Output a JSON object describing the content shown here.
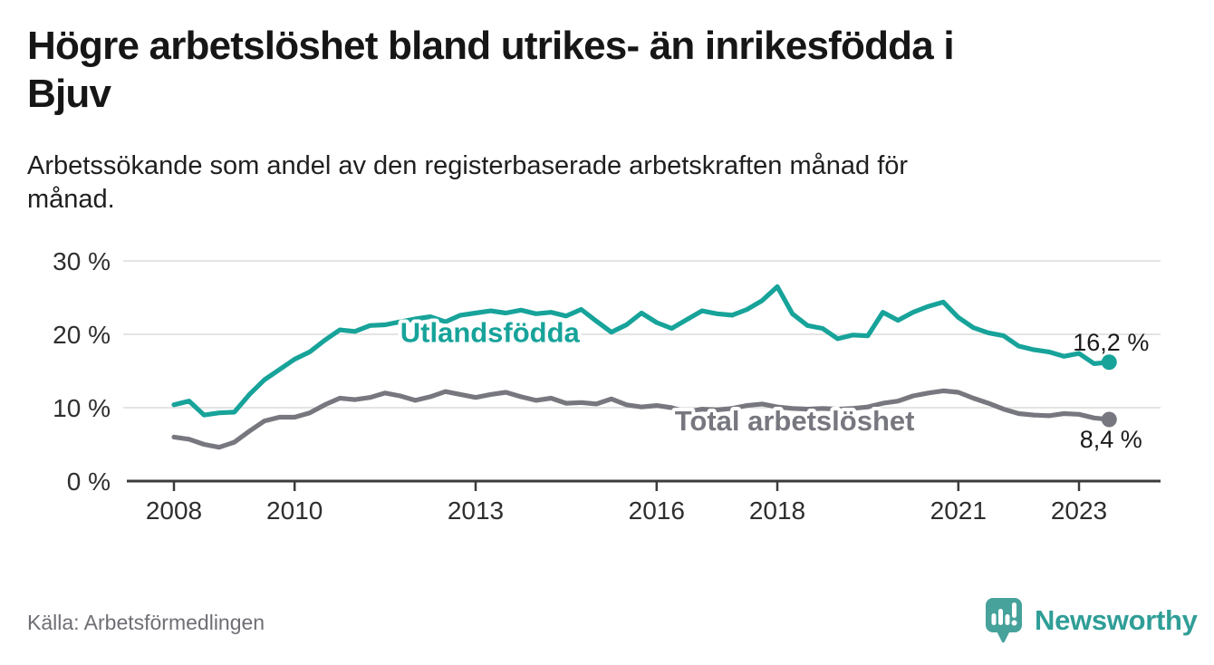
{
  "header": {
    "title_lines": [
      "Högre arbetslöshet bland utrikes- än inrikesfödda i",
      "Bjuv"
    ],
    "subtitle_lines": [
      "Arbetssökande som andel av den registerbaserade arbetskraften månad för",
      "månad."
    ]
  },
  "footer": {
    "source": "Källa: Arbetsförmedlingen",
    "brand": "Newsworthy"
  },
  "colors": {
    "series_foreign_born": "#17A39A",
    "series_total": "#77777F",
    "gridline": "#DCDCDC",
    "axis": "#3B3B3B",
    "tick_text": "#2E2E2E",
    "title_text": "#161616",
    "source_text": "#6E6E74",
    "logo_teal": "#46A29B",
    "brand_text_teal": "#2F9E97"
  },
  "chart_data": {
    "type": "line",
    "title": "Högre arbetslöshet bland utrikes- än inrikesfödda i Bjuv",
    "subtitle": "Arbetssökande som andel av den registerbaserade arbetskraften månad för månad.",
    "unit": "%",
    "x_start": 2008.0,
    "x_step": 0.25,
    "x_end": 2023.5,
    "x_ticks": [
      2008,
      2010,
      2013,
      2016,
      2018,
      2021,
      2023
    ],
    "y_ticks": [
      {
        "value": 30,
        "label": "30 %"
      },
      {
        "value": 20,
        "label": "20 %"
      },
      {
        "value": 10,
        "label": "10 %"
      },
      {
        "value": 0,
        "label": "0 %"
      }
    ],
    "ylim": [
      0,
      30
    ],
    "grid": "horizontal",
    "legend": "inline-labels",
    "series": [
      {
        "id": "utlandsfodda",
        "name": "Utlandsfödda",
        "color": "#17A39A",
        "end_label": "16,2 %",
        "end_value": 16.2,
        "end_label_position": "above",
        "label_x": 2011.75,
        "label_y": 20.3,
        "values": [
          10.4,
          10.9,
          9.0,
          9.3,
          9.4,
          11.8,
          13.8,
          15.2,
          16.6,
          17.6,
          19.2,
          20.6,
          20.4,
          21.2,
          21.3,
          21.7,
          22.1,
          22.4,
          21.7,
          22.6,
          22.9,
          23.2,
          22.9,
          23.3,
          22.8,
          23.0,
          22.5,
          23.4,
          21.8,
          20.3,
          21.3,
          22.9,
          21.6,
          20.8,
          22.0,
          23.2,
          22.8,
          22.6,
          23.4,
          24.6,
          26.5,
          22.8,
          21.2,
          20.8,
          19.4,
          19.9,
          19.8,
          23.0,
          21.9,
          23.0,
          23.8,
          24.4,
          22.3,
          20.9,
          20.2,
          19.8,
          18.4,
          17.9,
          17.6,
          17.0,
          17.4,
          16.0,
          16.2
        ]
      },
      {
        "id": "total",
        "name": "Total arbetslöshet",
        "color": "#77777F",
        "end_label": "8,4 %",
        "end_value": 8.4,
        "end_label_position": "below",
        "label_x": 2016.3,
        "label_y": 8.3,
        "values": [
          6.0,
          5.7,
          5.0,
          4.6,
          5.3,
          6.8,
          8.2,
          8.7,
          8.7,
          9.3,
          10.4,
          11.3,
          11.1,
          11.4,
          12.0,
          11.6,
          11.0,
          11.5,
          12.2,
          11.8,
          11.4,
          11.8,
          12.1,
          11.5,
          11.0,
          11.3,
          10.6,
          10.7,
          10.5,
          11.2,
          10.4,
          10.1,
          10.3,
          10.0,
          9.4,
          9.8,
          9.7,
          9.9,
          10.3,
          10.5,
          10.1,
          9.9,
          9.8,
          9.9,
          9.8,
          9.9,
          10.1,
          10.6,
          10.9,
          11.6,
          12.0,
          12.3,
          12.1,
          11.3,
          10.6,
          9.8,
          9.2,
          9.0,
          8.9,
          9.2,
          9.1,
          8.6,
          8.4
        ]
      }
    ]
  }
}
